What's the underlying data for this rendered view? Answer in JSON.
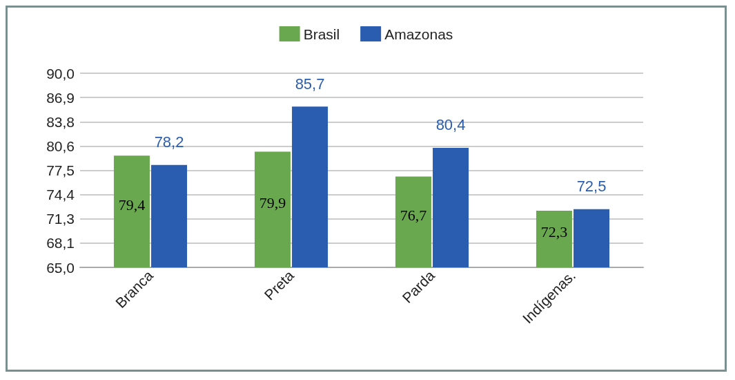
{
  "chart_data": {
    "type": "bar",
    "categories": [
      "Branca",
      "Preta",
      "Parda",
      "Indígenas."
    ],
    "series": [
      {
        "name": "Brasil",
        "color": "#6aa84f",
        "values": [
          79.4,
          79.9,
          76.7,
          72.3
        ],
        "value_labels": [
          "79,4",
          "79,9",
          "76,7",
          "72,3"
        ]
      },
      {
        "name": "Amazonas",
        "color": "#2a5db0",
        "values": [
          78.2,
          85.7,
          80.4,
          72.5
        ],
        "value_labels": [
          "78,2",
          "85,7",
          "80,4",
          "72,5"
        ]
      }
    ],
    "ylim": [
      65,
      90
    ],
    "yticks": [
      {
        "value": 65,
        "label": "65,0"
      },
      {
        "value": 68.125,
        "label": "68,1"
      },
      {
        "value": 71.25,
        "label": "71,3"
      },
      {
        "value": 74.375,
        "label": "74,4"
      },
      {
        "value": 77.5,
        "label": "77,5"
      },
      {
        "value": 80.625,
        "label": "80,6"
      },
      {
        "value": 83.75,
        "label": "83,8"
      },
      {
        "value": 86.875,
        "label": "86,9"
      },
      {
        "value": 90,
        "label": "90,0"
      }
    ],
    "grid": "y",
    "legend": "top"
  }
}
